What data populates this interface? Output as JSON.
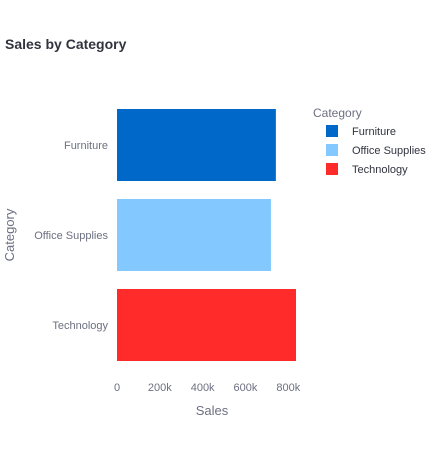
{
  "chart_data": {
    "type": "bar",
    "orientation": "horizontal",
    "title": "Sales by Category",
    "xlabel": "Sales",
    "ylabel": "Category",
    "categories": [
      "Furniture",
      "Office Supplies",
      "Technology"
    ],
    "values": [
      742000,
      719000,
      836000
    ],
    "colors": [
      "#0068c9",
      "#83c9ff",
      "#ff2b2b"
    ],
    "xlim": [
      0,
      850000
    ],
    "xticks": [
      0,
      200000,
      400000,
      600000,
      800000
    ],
    "xtick_labels": [
      "0",
      "200k",
      "400k",
      "600k",
      "800k"
    ],
    "grid": false,
    "legend": {
      "title": "Category",
      "placement": "right",
      "entries": [
        "Furniture",
        "Office Supplies",
        "Technology"
      ]
    }
  }
}
